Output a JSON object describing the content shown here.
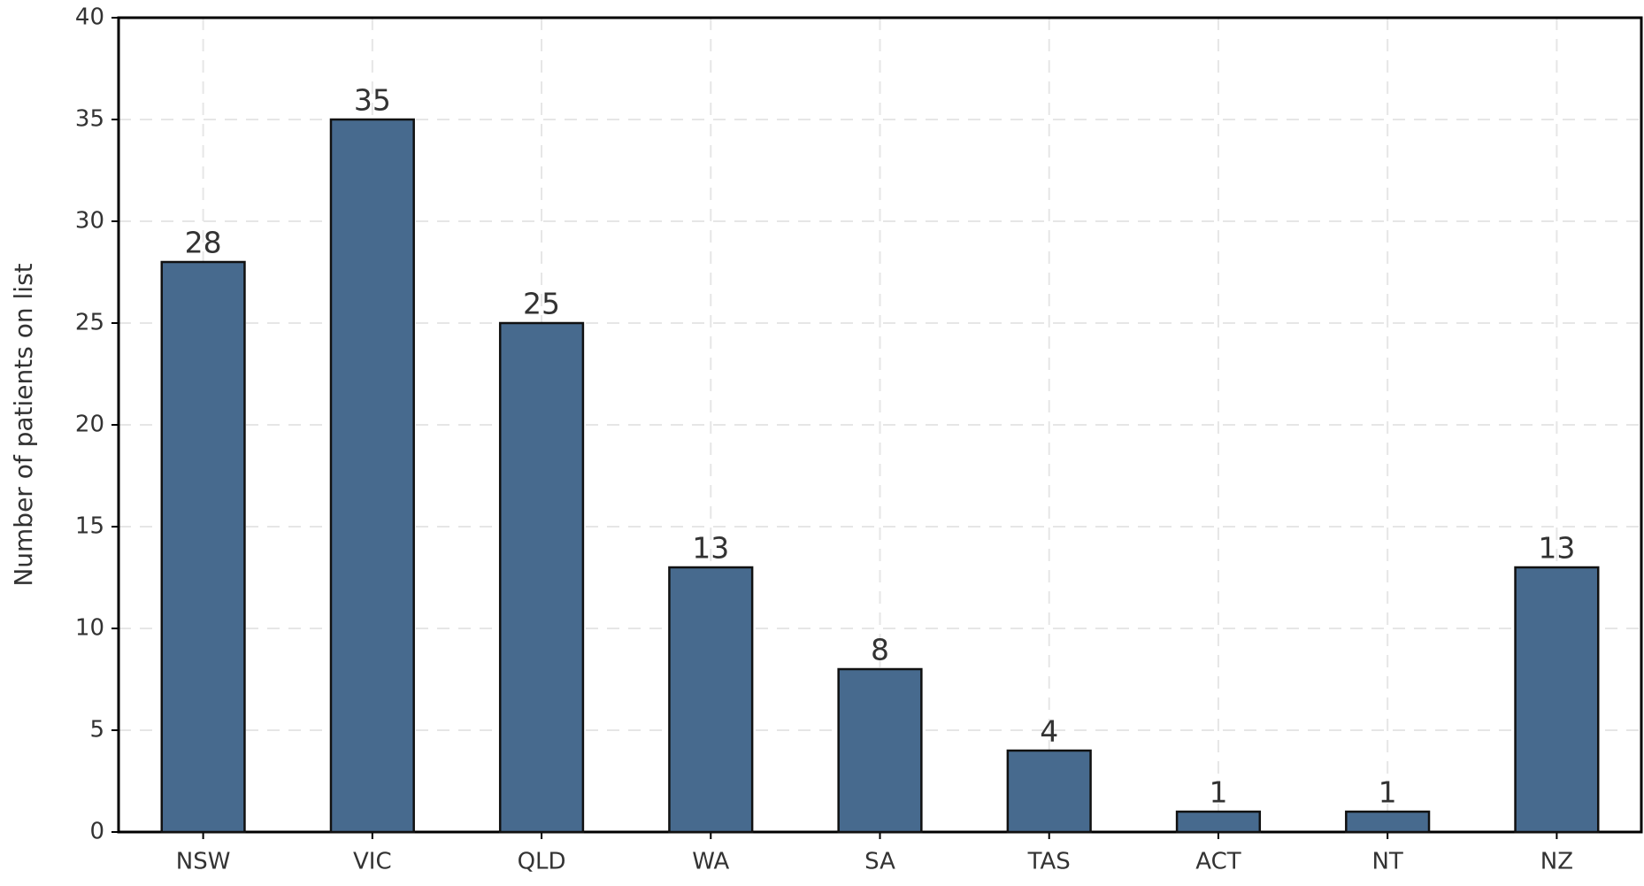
{
  "chart_data": {
    "type": "bar",
    "y_axis_label": "Number of patients on list",
    "categories": [
      "NSW",
      "VIC",
      "QLD",
      "WA",
      "SA",
      "TAS",
      "ACT",
      "NT",
      "NZ"
    ],
    "values": [
      28,
      35,
      25,
      13,
      8,
      4,
      1,
      1,
      13
    ],
    "color": "#476a8e",
    "ylim": [
      0,
      40
    ],
    "yticks": [
      0,
      5,
      10,
      15,
      20,
      25,
      30,
      35,
      40
    ],
    "grid": true
  }
}
